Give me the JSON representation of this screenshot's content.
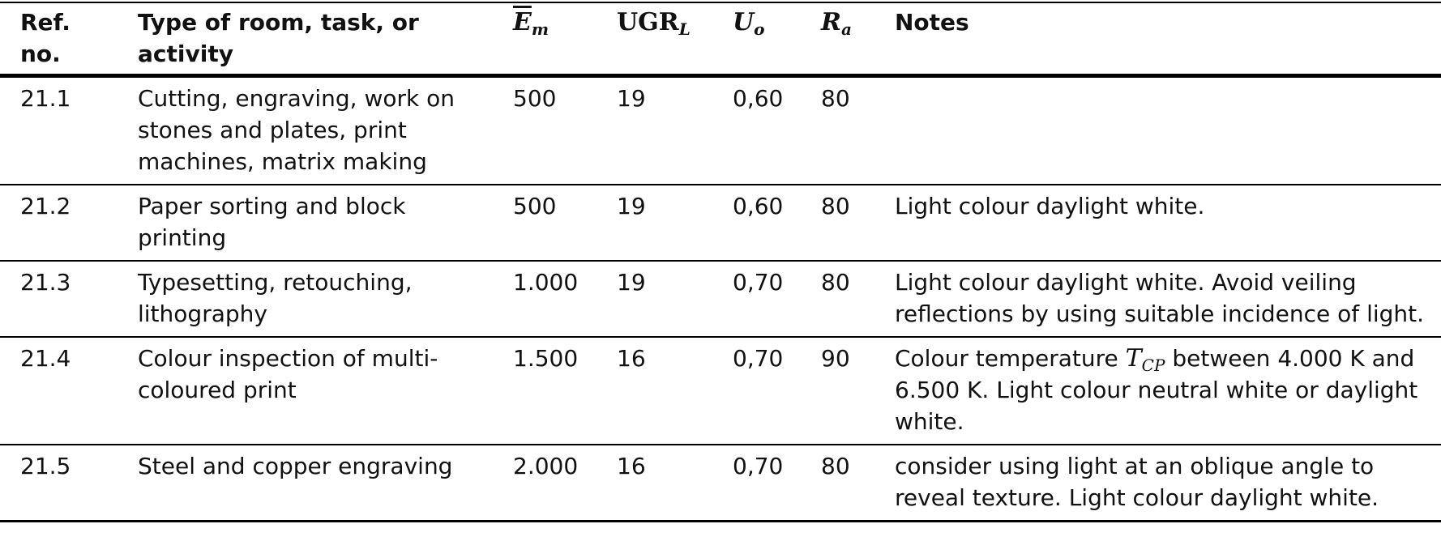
{
  "table": {
    "header": [
      "Ref. no.",
      "Type of room, task, or activity",
      {
        "base": "E",
        "sub": "m",
        "overbar": true
      },
      {
        "base": "UGR",
        "sub": "L"
      },
      {
        "base": "U",
        "sub": "o"
      },
      {
        "base": "R",
        "sub": "a"
      },
      "Notes"
    ],
    "rows": [
      [
        "21.1",
        "Cutting, engraving, work on stones and plates, print machines, matrix making",
        "500",
        "19",
        "0,60",
        "80",
        []
      ],
      [
        "21.2",
        "Paper sorting and block printing",
        "500",
        "19",
        "0,60",
        "80",
        [
          "Light colour daylight white."
        ]
      ],
      [
        "21.3",
        "Typesetting, retouching, lithography",
        "1.000",
        "19",
        "0,70",
        "80",
        [
          "Light colour daylight white. Avoid veiling reflections by using suitable incidence of light."
        ]
      ],
      [
        "21.4",
        "Colour inspection of multi-coloured print",
        "1.500",
        "16",
        "0,70",
        "90",
        [
          "Colour temperature ",
          {
            "base": "T",
            "sub": "CP"
          },
          " between 4.000 K and 6.500 K. Light colour neutral white or daylight white."
        ]
      ],
      [
        "21.5",
        "Steel and copper engraving",
        "2.000",
        "16",
        "0,70",
        "80",
        [
          "consider using light at an oblique angle to reveal texture. Light colour daylight white."
        ]
      ]
    ]
  }
}
